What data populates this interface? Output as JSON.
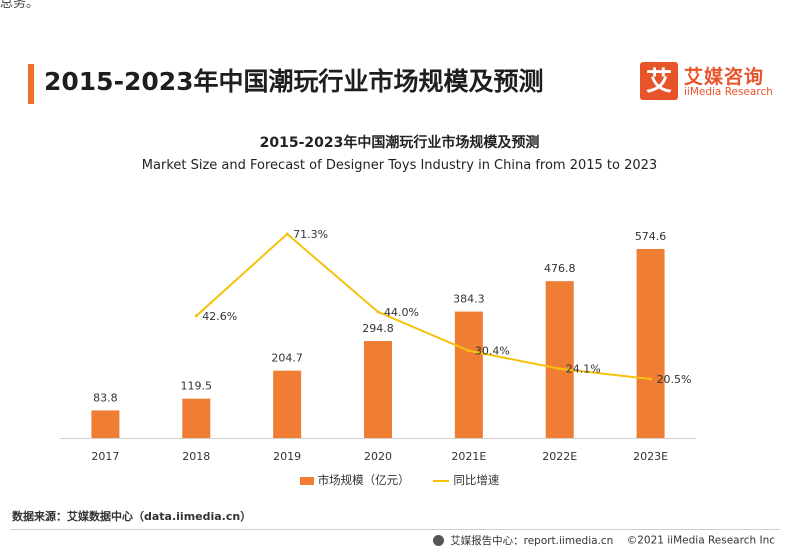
{
  "page": {
    "top_fragment": "总务。",
    "title": "2015-2023年中国潮玩行业市场规模及预测"
  },
  "brand": {
    "logo_char": "艾",
    "name_cn": "艾媒咨询",
    "name_en": "iiMedia Research",
    "accent": "#e8542a"
  },
  "chart_data": {
    "type": "bar",
    "title": "2015-2023年中国潮玩行业市场规模及预测",
    "subtitle": "Market Size and Forecast of Designer Toys Industry in China from 2015 to 2023",
    "categories": [
      "2017",
      "2018",
      "2019",
      "2020",
      "2021E",
      "2022E",
      "2023E"
    ],
    "series": [
      {
        "name": "市场规模（亿元）",
        "type": "bar",
        "color": "#ef7d33",
        "values": [
          83.8,
          119.5,
          204.7,
          294.8,
          384.3,
          476.8,
          574.6
        ],
        "labels": [
          "83.8",
          "119.5",
          "204.7",
          "294.8",
          "384.3",
          "476.8",
          "574.6"
        ]
      },
      {
        "name": "同比增速",
        "type": "line",
        "color": "#f5c10d",
        "values": [
          null,
          42.6,
          71.3,
          44.0,
          30.4,
          24.1,
          20.5
        ],
        "labels": [
          "",
          "42.6%",
          "71.3%",
          "44.0%",
          "30.4%",
          "24.1%",
          "20.5%"
        ]
      }
    ],
    "ylim": [
      0,
      620
    ],
    "y2lim": [
      0,
      100
    ],
    "grid": false,
    "legend_placement": "bottom-center"
  },
  "footer": {
    "source": "数据来源：艾媒数据中心（data.iimedia.cn）",
    "report": "艾媒报告中心：report.iimedia.cn",
    "copyright": "©2021  iiMedia Research  Inc"
  }
}
